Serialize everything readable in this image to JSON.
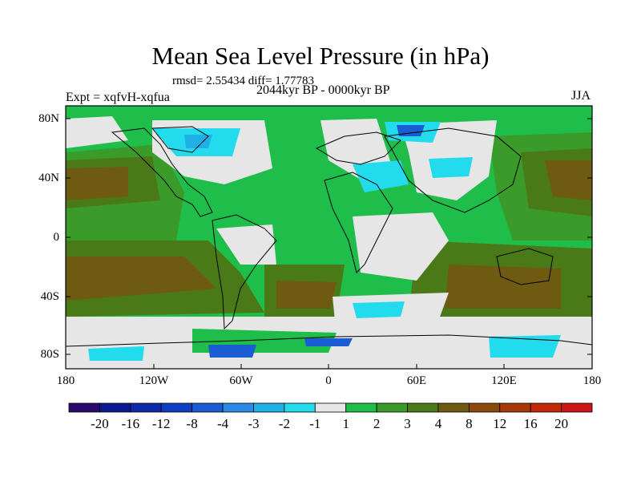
{
  "title": "Mean Sea Level Pressure (in hPa)",
  "stats": "rmsd= 2.55434 diff= 1.77783",
  "subtitle": "2044kyr BP - 0000kyr BP",
  "experiment": "Expt = xqfvH-xqfua",
  "season": "JJA",
  "lat_labels": [
    "80N",
    "40N",
    "0",
    "40S",
    "80S"
  ],
  "lon_labels": [
    "180",
    "120W",
    "60W",
    "0",
    "60E",
    "120E",
    "180"
  ],
  "colorbar": {
    "labels": [
      "-20",
      "-16",
      "-12",
      "-8",
      "-4",
      "-3",
      "-2",
      "-1",
      "1",
      "2",
      "3",
      "4",
      "8",
      "12",
      "16",
      "20"
    ],
    "colors": [
      "#2a0a6e",
      "#0a1a90",
      "#0c2aa8",
      "#0f3ec0",
      "#1a5cd2",
      "#2a8ae6",
      "#1fb0e6",
      "#22dcee",
      "#e6e6e6",
      "#1fbe4a",
      "#3a9a2a",
      "#4a7a18",
      "#6e5a10",
      "#8a4a0c",
      "#a63a08",
      "#c02808",
      "#cc1414"
    ]
  },
  "palette": {
    "neutral": "#e6e6e6",
    "green2": "#1fbe4a",
    "green3": "#3a9a2a",
    "olive4": "#4a7a18",
    "brown8": "#6e5a10",
    "cyan": "#22dcee",
    "lblue": "#1fb0e6",
    "blue": "#1a5cd2"
  }
}
